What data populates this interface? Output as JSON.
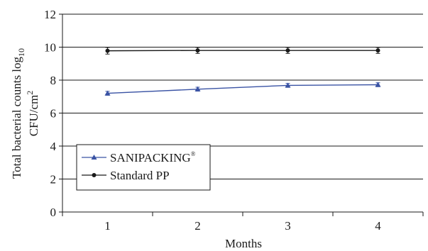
{
  "chart_data": {
    "type": "line",
    "title": "",
    "categories": [
      "1",
      "2",
      "3",
      "4"
    ],
    "x": [
      1,
      2,
      3,
      4
    ],
    "xlabel": "Months",
    "ylabel": {
      "line1_prefix": "Total bacterial counts log",
      "line1_subscript": "10",
      "line2_prefix": "CFU/cm",
      "line2_superscript": "2"
    },
    "ylim": [
      0,
      12
    ],
    "yticks": [
      0,
      2,
      4,
      6,
      8,
      10,
      12
    ],
    "grid": "horizontal",
    "legend_position": "bottom-left",
    "series": [
      {
        "name": "SANIPACKING",
        "name_superscript": "®",
        "marker": "triangle",
        "color": "#3a53a4",
        "values": [
          7.2,
          7.45,
          7.68,
          7.72
        ],
        "error": [
          0.12,
          0.12,
          0.12,
          0.12
        ]
      },
      {
        "name": "Standard PP",
        "marker": "circle",
        "color": "#1a1a1a",
        "values": [
          9.78,
          9.8,
          9.8,
          9.8
        ],
        "error": [
          0.2,
          0.18,
          0.18,
          0.18
        ]
      }
    ]
  }
}
